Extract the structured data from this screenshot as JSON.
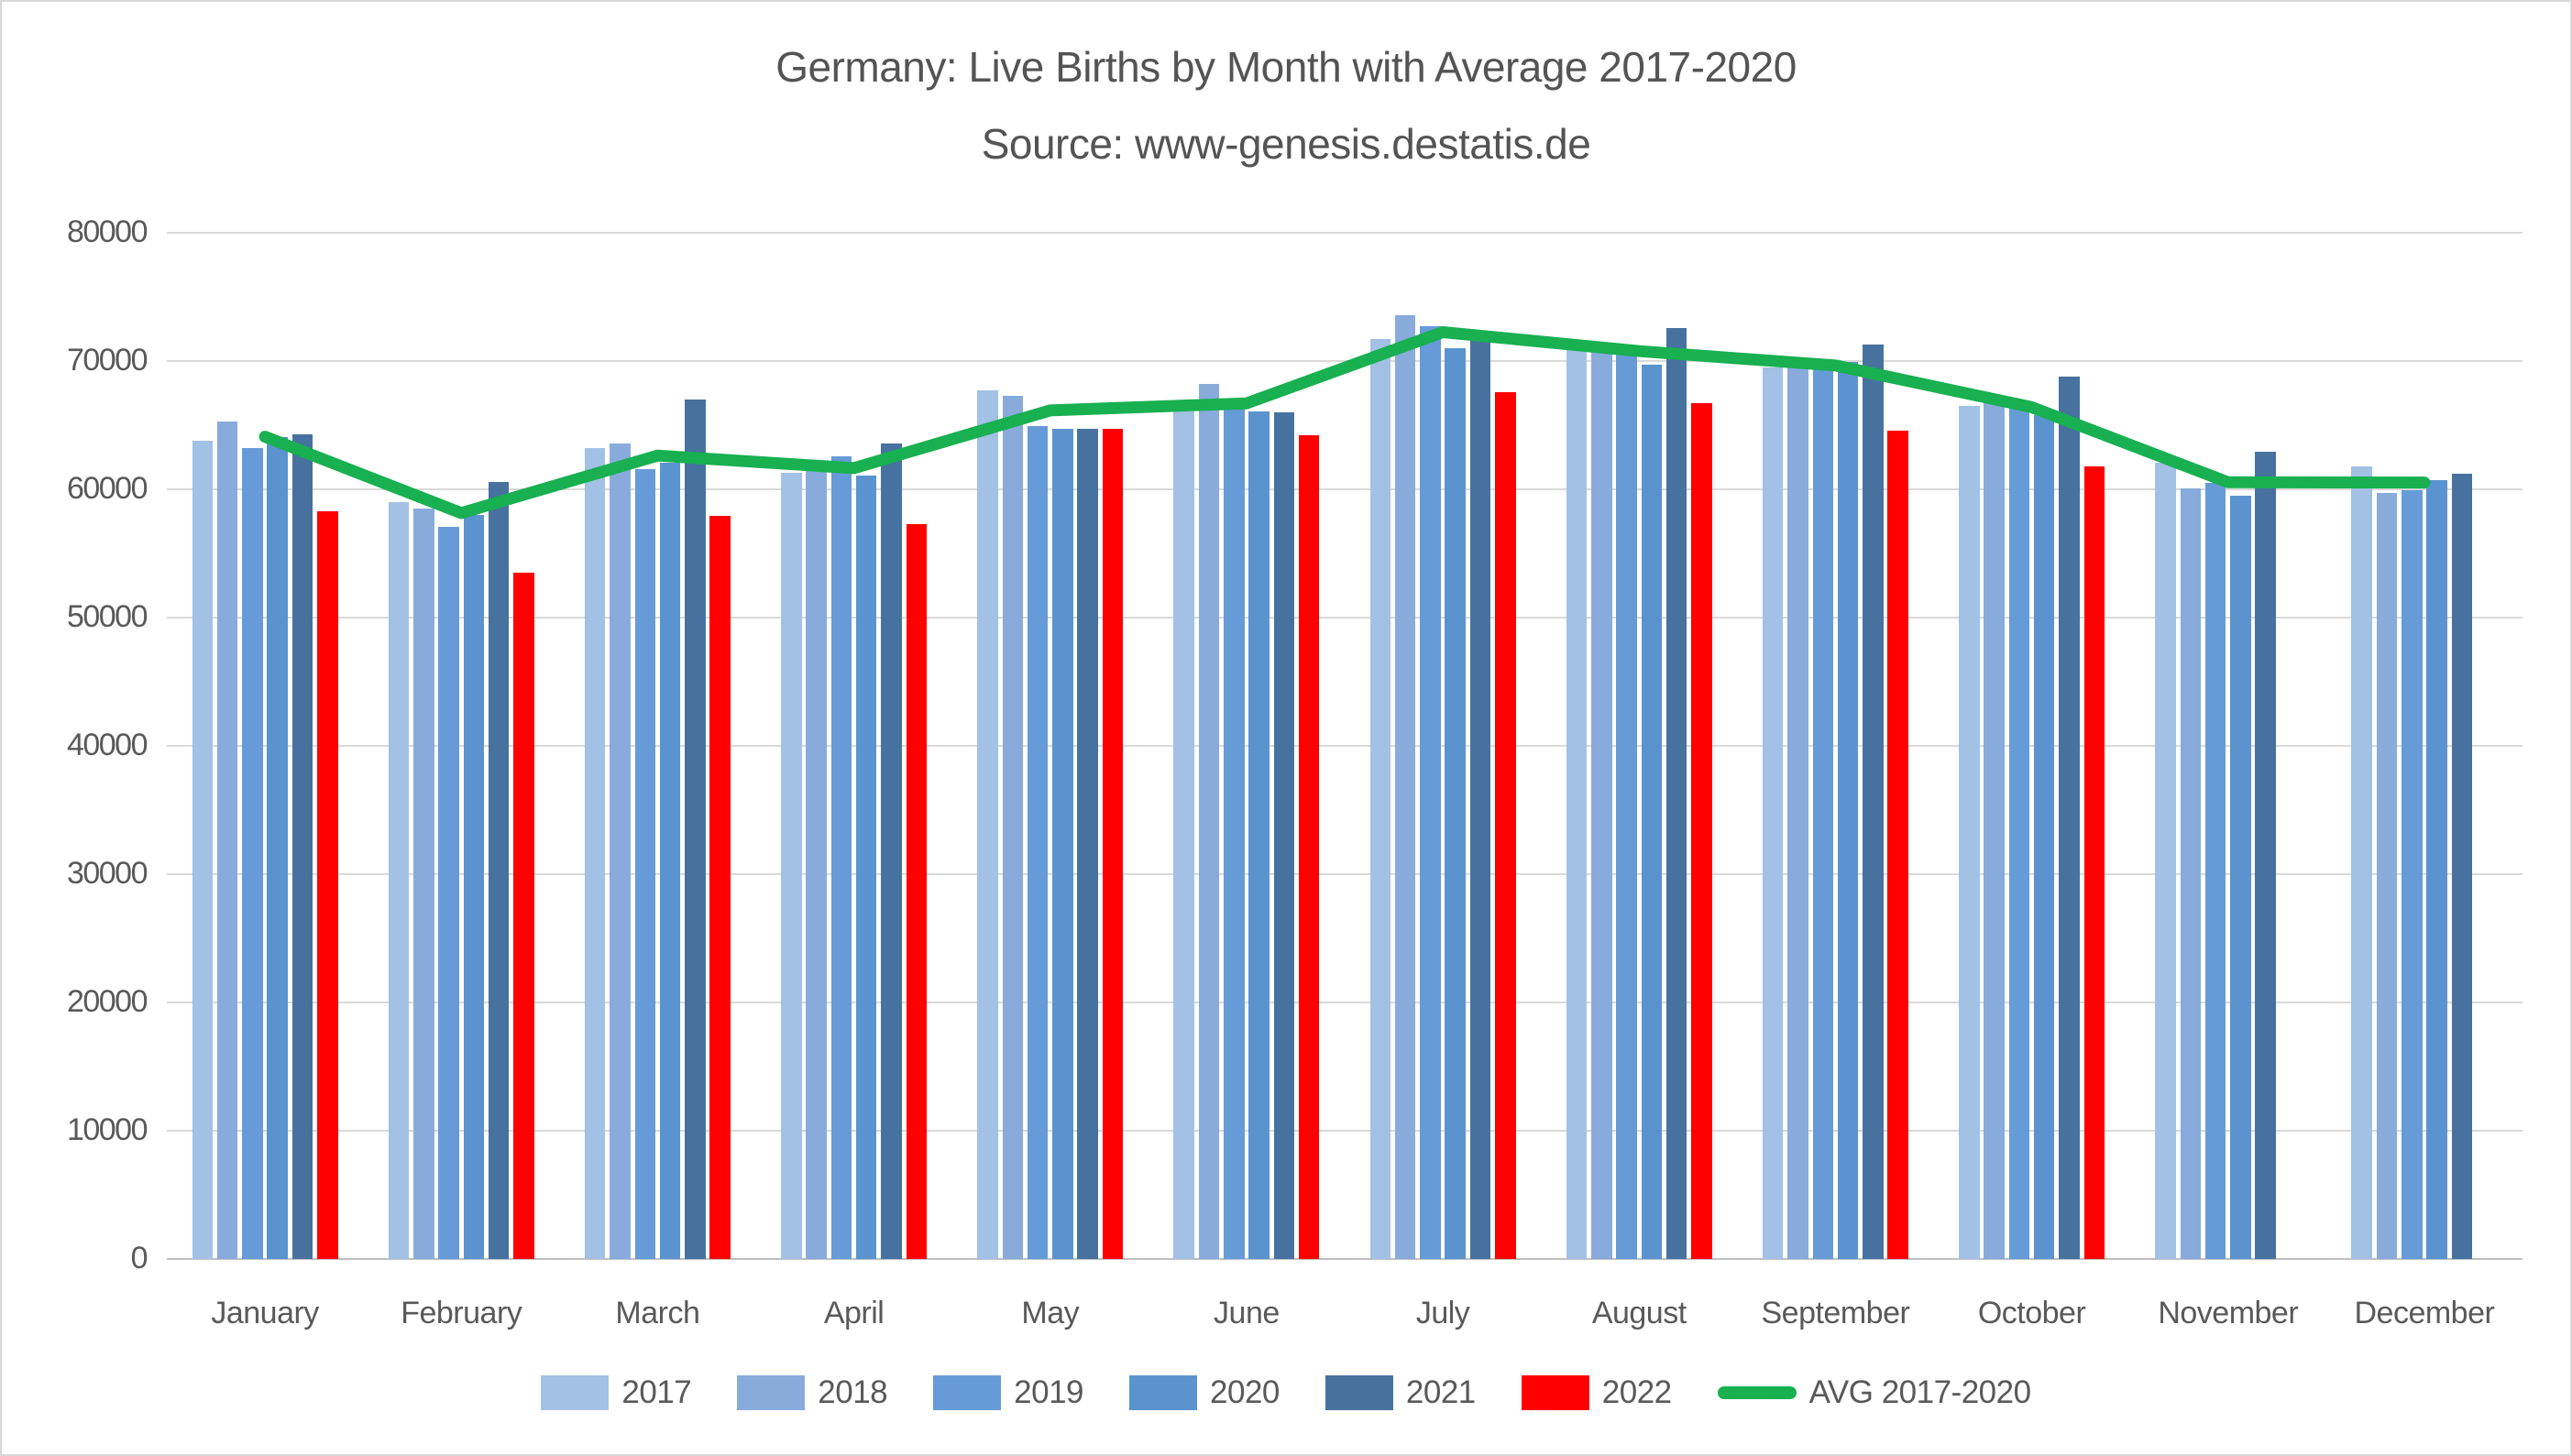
{
  "title": {
    "line1": "Germany: Live Births by Month with Average 2017-2020",
    "line2": "Source: www-genesis.destatis.de"
  },
  "colors": {
    "y2017": "#A2C1E5",
    "y2018": "#88ABDC",
    "y2019": "#669BD8",
    "y2020": "#5B93CF",
    "y2021": "#47729F",
    "y2022": "#FF0000",
    "avg_line": "#18B050",
    "gridline": "#D9D9D9",
    "axis_line": "#BFBFBF",
    "text": "#595959"
  },
  "chart_data": {
    "type": "bar",
    "title": "Germany: Live Births by Month with Average 2017-2020",
    "subtitle": "Source: www-genesis.destatis.de",
    "categories": [
      "January",
      "February",
      "March",
      "April",
      "May",
      "June",
      "July",
      "August",
      "September",
      "October",
      "November",
      "December"
    ],
    "series": [
      {
        "name": "2017",
        "color": "#A2C1E5",
        "values": [
          63800,
          59000,
          63200,
          61300,
          67700,
          66100,
          71700,
          71300,
          69500,
          66500,
          62100,
          61800
        ]
      },
      {
        "name": "2018",
        "color": "#88ABDC",
        "values": [
          65300,
          58500,
          63600,
          61600,
          67300,
          68200,
          73600,
          71200,
          69700,
          66900,
          60100,
          59700
        ]
      },
      {
        "name": "2019",
        "color": "#669BD8",
        "values": [
          63200,
          57100,
          61600,
          62600,
          64900,
          66400,
          72700,
          70900,
          69500,
          66400,
          60500,
          59900
        ]
      },
      {
        "name": "2020",
        "color": "#5B93CF",
        "values": [
          64100,
          58000,
          62100,
          61100,
          64700,
          66100,
          71000,
          69700,
          69900,
          65800,
          59500,
          60700
        ]
      },
      {
        "name": "2021",
        "color": "#47729F",
        "values": [
          64300,
          60600,
          67000,
          63600,
          64700,
          66000,
          71700,
          72600,
          71300,
          68800,
          62900,
          61200
        ]
      },
      {
        "name": "2022",
        "color": "#FF0000",
        "values": [
          58300,
          53500,
          57900,
          57300,
          64700,
          64200,
          67600,
          66700,
          64600,
          61800,
          null,
          null
        ]
      }
    ],
    "line_series": {
      "name": "AVG 2017-2020",
      "color": "#18B050",
      "values": [
        64100,
        58150,
        62625,
        61650,
        66150,
        66700,
        72250,
        70775,
        69650,
        66400,
        60550,
        60525
      ]
    },
    "ylim": [
      0,
      80000
    ],
    "yticks": [
      0,
      10000,
      20000,
      30000,
      40000,
      50000,
      60000,
      70000,
      80000
    ],
    "grid": true,
    "legend_position": "bottom",
    "xlabel": "",
    "ylabel": ""
  }
}
